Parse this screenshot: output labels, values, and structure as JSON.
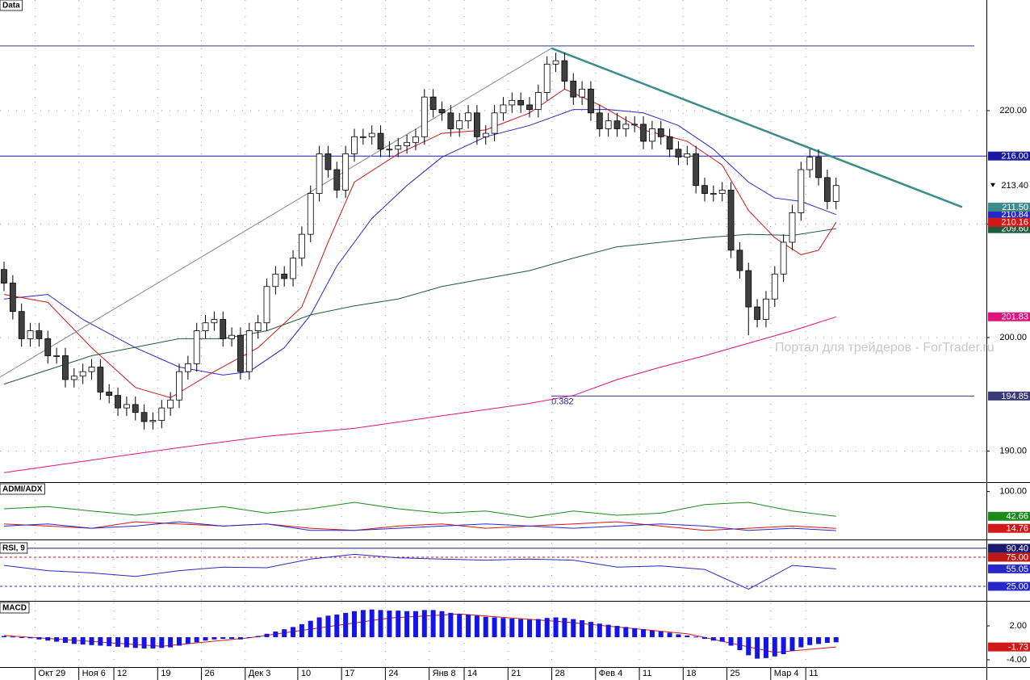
{
  "chart_data": [
    {
      "type": "candlestick",
      "title": "Data",
      "categories": [
        null,
        null,
        null,
        null,
        "Окт 29",
        null,
        null,
        null,
        null,
        "Ноя 6",
        null,
        null,
        null,
        "12",
        null,
        null,
        null,
        null,
        "19",
        null,
        null,
        null,
        null,
        "26",
        null,
        null,
        null,
        null,
        "Дек 3",
        null,
        null,
        null,
        null,
        null,
        "10",
        null,
        null,
        null,
        null,
        "17",
        null,
        null,
        null,
        null,
        "24",
        null,
        null,
        null,
        null,
        "Янв 8",
        null,
        null,
        null,
        "14",
        null,
        null,
        null,
        null,
        "21",
        null,
        null,
        null,
        null,
        "28",
        null,
        null,
        null,
        null,
        "Фев 4",
        null,
        null,
        null,
        null,
        "11",
        null,
        null,
        null,
        null,
        "18",
        null,
        null,
        null,
        null,
        "25",
        null,
        null,
        null,
        null,
        "Мар 4",
        null,
        null,
        null,
        "11",
        null,
        null,
        null
      ],
      "open": [
        206.0,
        204.8,
        202.3,
        199.9,
        200.6,
        199.9,
        198.4,
        198.4,
        196.3,
        196.6,
        197.0,
        197.4,
        195.2,
        194.9,
        193.8,
        194.1,
        193.4,
        192.6,
        192.7,
        193.8,
        194.5,
        197.0,
        197.7,
        200.6,
        201.3,
        201.6,
        199.9,
        200.2,
        197.0,
        200.6,
        201.3,
        204.5,
        205.6,
        205.2,
        207.0,
        209.1,
        212.7,
        216.2,
        214.8,
        213.0,
        216.2,
        217.7,
        217.7,
        218.0,
        216.6,
        216.6,
        216.9,
        217.2,
        217.7,
        221.2,
        220.1,
        219.8,
        218.4,
        219.1,
        219.8,
        217.7,
        218.0,
        219.8,
        220.5,
        220.9,
        220.5,
        220.1,
        221.6,
        224.1,
        224.4,
        222.6,
        221.2,
        221.9,
        219.8,
        218.4,
        219.1,
        218.4,
        218.8,
        218.8,
        217.3,
        218.4,
        217.7,
        216.6,
        215.9,
        216.2,
        213.4,
        212.7,
        212.7,
        213.0,
        207.7,
        205.9,
        202.7,
        201.6,
        203.4,
        205.6,
        208.4,
        211.0,
        214.8,
        215.9,
        214.1,
        212.0
      ],
      "high": [
        206.7,
        205.5,
        203.0,
        201.3,
        201.3,
        200.6,
        199.1,
        199.1,
        197.3,
        197.7,
        198.1,
        198.1,
        195.9,
        195.6,
        194.8,
        194.8,
        194.1,
        193.4,
        194.5,
        195.2,
        197.7,
        198.4,
        201.3,
        202.0,
        202.3,
        202.3,
        200.9,
        200.9,
        201.3,
        202.0,
        205.2,
        206.3,
        206.3,
        207.7,
        209.8,
        213.4,
        216.9,
        216.9,
        215.5,
        216.9,
        218.4,
        218.4,
        218.7,
        218.7,
        217.3,
        217.6,
        217.9,
        218.4,
        221.9,
        221.9,
        220.8,
        220.5,
        219.8,
        220.5,
        220.5,
        218.7,
        220.5,
        221.2,
        221.6,
        221.6,
        221.2,
        222.3,
        224.8,
        225.1,
        225.1,
        223.3,
        222.6,
        222.6,
        220.5,
        219.8,
        219.8,
        219.5,
        219.5,
        219.5,
        219.1,
        219.1,
        218.4,
        217.3,
        216.9,
        216.9,
        214.1,
        213.4,
        213.7,
        213.7,
        208.4,
        206.6,
        203.4,
        204.1,
        206.3,
        209.1,
        211.7,
        215.5,
        216.6,
        216.6,
        214.8,
        214.1
      ],
      "low": [
        204.1,
        201.6,
        199.2,
        199.2,
        199.2,
        197.7,
        197.7,
        195.6,
        195.6,
        195.9,
        196.3,
        194.5,
        194.2,
        193.1,
        193.1,
        192.7,
        191.9,
        191.9,
        192.0,
        193.1,
        193.8,
        196.3,
        197.0,
        199.9,
        200.6,
        199.2,
        199.2,
        196.3,
        196.3,
        199.9,
        200.6,
        203.8,
        204.5,
        204.5,
        206.3,
        208.4,
        212.0,
        214.1,
        212.3,
        212.3,
        215.5,
        217.0,
        217.0,
        215.9,
        215.9,
        215.9,
        216.2,
        216.5,
        217.0,
        219.4,
        219.1,
        217.7,
        217.7,
        218.4,
        217.0,
        217.0,
        217.3,
        219.1,
        219.8,
        219.8,
        219.4,
        219.4,
        220.9,
        223.4,
        221.9,
        220.5,
        220.5,
        219.1,
        217.7,
        217.7,
        217.7,
        217.7,
        218.1,
        216.6,
        216.6,
        217.0,
        215.9,
        215.2,
        215.2,
        212.7,
        212.0,
        212.0,
        212.0,
        207.0,
        205.2,
        200.2,
        200.9,
        200.9,
        202.7,
        204.9,
        207.7,
        210.3,
        214.1,
        213.4,
        211.3,
        211.3
      ],
      "close": [
        204.8,
        202.3,
        199.9,
        200.6,
        199.9,
        198.4,
        198.4,
        196.3,
        196.6,
        197.0,
        197.4,
        195.2,
        194.9,
        193.8,
        194.1,
        193.4,
        192.6,
        192.7,
        193.8,
        194.5,
        197.0,
        197.7,
        200.6,
        201.3,
        201.6,
        199.9,
        200.2,
        197.0,
        200.6,
        201.3,
        204.5,
        205.6,
        205.2,
        207.0,
        209.1,
        212.7,
        216.2,
        214.8,
        213.0,
        216.2,
        217.7,
        217.7,
        218.0,
        216.6,
        216.6,
        216.9,
        217.2,
        217.7,
        221.2,
        220.1,
        219.8,
        218.4,
        219.1,
        219.8,
        217.7,
        218.0,
        219.8,
        220.5,
        220.9,
        220.5,
        220.1,
        221.6,
        224.1,
        224.4,
        222.6,
        221.2,
        221.9,
        219.8,
        218.4,
        219.1,
        218.4,
        218.8,
        218.8,
        217.3,
        218.4,
        217.7,
        216.6,
        215.9,
        216.2,
        213.4,
        212.7,
        212.7,
        213.0,
        207.7,
        205.9,
        202.7,
        201.6,
        203.4,
        205.6,
        208.4,
        211.0,
        214.8,
        215.9,
        214.1,
        212.0,
        213.4
      ],
      "close_label": "213.40",
      "up_color": "#ffffff",
      "down_color": "#404040",
      "ylim": [
        187.26,
        229.75
      ],
      "yticks": [
        {
          "value": 190,
          "label": "190.00"
        },
        {
          "value": 200,
          "label": "200.00"
        },
        {
          "value": 210,
          "label": "210.00"
        },
        {
          "value": 220,
          "label": "220.00"
        }
      ],
      "grid": true,
      "series": [
        {
          "x": [
            0,
            10,
            20,
            30,
            40,
            50,
            60,
            65,
            70,
            75,
            80,
            85,
            90,
            95
          ],
          "values": [
            188.1,
            189.2,
            190.3,
            191.3,
            192.0,
            193.1,
            194.2,
            194.9,
            196.3,
            197.4,
            198.4,
            199.5,
            200.6,
            201.83
          ],
          "color": "#e0147a",
          "label": "201.83"
        },
        {
          "x": [
            0,
            10,
            20,
            25,
            30,
            35,
            40,
            45,
            50,
            55,
            60,
            65,
            70,
            75,
            80,
            85,
            90,
            95
          ],
          "values": [
            195.9,
            198.4,
            199.9,
            199.9,
            200.6,
            202.0,
            202.8,
            203.4,
            204.5,
            205.2,
            205.9,
            207.0,
            208.0,
            208.4,
            208.8,
            209.1,
            209.0,
            209.6
          ],
          "color": "#1e5a3c",
          "label": "209.60"
        },
        {
          "x": [
            0,
            5,
            9,
            15,
            20,
            25,
            28,
            32,
            35,
            38,
            42,
            46,
            50,
            55,
            60,
            65,
            69,
            73,
            77,
            81,
            85,
            88,
            91,
            95
          ],
          "values": [
            203.4,
            203.8,
            201.6,
            199.1,
            197.4,
            196.7,
            197.0,
            199.1,
            202.0,
            206.3,
            210.5,
            213.4,
            215.9,
            217.7,
            218.7,
            220.1,
            220.1,
            219.8,
            218.7,
            216.6,
            213.7,
            212.3,
            212.0,
            210.84
          ],
          "color": "#2828c8",
          "label": "210.84"
        },
        {
          "x": [
            0,
            5,
            10,
            15,
            19,
            24,
            29,
            34,
            37,
            40,
            45,
            50,
            55,
            60,
            64,
            68,
            73,
            78,
            82,
            85,
            88,
            91,
            93,
            95
          ],
          "values": [
            203.8,
            203.1,
            199.1,
            195.6,
            194.7,
            197.0,
            199.1,
            202.7,
            208.4,
            213.7,
            216.2,
            218.0,
            218.3,
            219.8,
            221.9,
            220.5,
            218.3,
            217.3,
            215.2,
            211.2,
            208.8,
            207.3,
            207.7,
            210.16
          ],
          "color": "#d01818",
          "label": "210.16"
        }
      ],
      "levels": [
        {
          "value": 225.7,
          "x": [
            -0.5,
            110.8
          ],
          "color": "#283c8c"
        },
        {
          "value": 216,
          "x": [
            -0.5,
            112.2
          ],
          "color": "#1a1aa0",
          "label": "216.00"
        },
        {
          "value": 194.85,
          "x": [
            62.5,
            110.8
          ],
          "color": "#3a3a78",
          "label": "194.85",
          "annotation": "0.382"
        }
      ],
      "trendlines": [
        {
          "x": [
            -0.5,
            62.5
          ],
          "values": [
            196.5,
            225.5
          ],
          "color": "#888888"
        },
        {
          "x": [
            62.5,
            109.4
          ],
          "values": [
            225.5,
            211.5
          ],
          "color": "#3c8c8c",
          "label": "211.50"
        }
      ],
      "watermark": "Портал для трейдеров - ForTrader.ru"
    },
    {
      "type": "line",
      "title": "ADMI/ADX",
      "ylim": [
        -11,
        118
      ],
      "yticks": [
        {
          "value": 100,
          "label": "100.00"
        }
      ],
      "series": [
        {
          "x": [
            0,
            5,
            10,
            15,
            20,
            25,
            30,
            35,
            40,
            45,
            50,
            55,
            60,
            65,
            70,
            75,
            80,
            85,
            90,
            95
          ],
          "values": [
            60,
            65,
            55,
            45,
            55,
            65,
            50,
            60,
            75,
            60,
            50,
            55,
            40,
            55,
            45,
            50,
            70,
            75,
            55,
            42.66
          ],
          "color": "#1a8a1a",
          "label": "42.66"
        },
        {
          "x": [
            0,
            5,
            10,
            15,
            20,
            25,
            30,
            35,
            40,
            45,
            50,
            55,
            60,
            65,
            70,
            75,
            80,
            85,
            90,
            95
          ],
          "values": [
            25,
            20,
            15,
            30,
            25,
            20,
            25,
            15,
            10,
            20,
            25,
            15,
            20,
            25,
            30,
            20,
            10,
            15,
            20,
            14.76
          ],
          "color": "#d01818",
          "label": "14.76"
        },
        {
          "x": [
            0,
            5,
            10,
            15,
            20,
            25,
            30,
            35,
            40,
            45,
            50,
            55,
            60,
            65,
            70,
            75,
            80,
            85,
            90,
            95
          ],
          "values": [
            20,
            25,
            15,
            20,
            30,
            20,
            25,
            10,
            10,
            15,
            20,
            25,
            20,
            15,
            20,
            25,
            20,
            10,
            15,
            9.5
          ],
          "color": "#2828c8"
        }
      ]
    },
    {
      "type": "line",
      "title": "RSI, 9",
      "ylim": [
        0,
        100
      ],
      "levels": [
        {
          "value": 90.4,
          "color": "#1a1a70",
          "label": "90.40"
        },
        {
          "value": 75,
          "color": "#c01818",
          "label": "75.00",
          "dashed": true
        },
        {
          "value": 25,
          "color": "#2828c8",
          "label": "25.00",
          "dashed": true
        }
      ],
      "series": [
        {
          "x": [
            0,
            5,
            10,
            15,
            20,
            25,
            30,
            35,
            40,
            45,
            50,
            55,
            60,
            65,
            70,
            75,
            80,
            85,
            90,
            95
          ],
          "values": [
            61,
            52,
            48,
            42,
            52,
            58,
            57,
            72,
            80,
            74,
            72,
            70,
            72,
            70,
            58,
            60,
            54,
            20,
            61,
            55.05
          ],
          "color": "#2828c8",
          "label": "55.05"
        }
      ]
    },
    {
      "type": "macd",
      "title": "MACD",
      "ylim": [
        -5.29,
        6.14
      ],
      "yticks": [
        {
          "value": 2,
          "label": "2.00"
        },
        {
          "value": -4,
          "label": "-4.00"
        }
      ],
      "histogram": {
        "color": "#1414e6",
        "values": [
          0.2,
          0.1,
          0,
          -0.2,
          -0.4,
          -0.6,
          -0.8,
          -1.0,
          -1.2,
          -1.3,
          -1.4,
          -1.5,
          -1.6,
          -1.7,
          -1.8,
          -1.9,
          -2.0,
          -2.0,
          -1.9,
          -1.8,
          -1.5,
          -1.2,
          -0.9,
          -0.6,
          -0.4,
          -0.3,
          -0.3,
          -0.4,
          -0.1,
          0.2,
          0.6,
          1.0,
          1.4,
          1.8,
          2.3,
          2.9,
          3.5,
          3.8,
          4.0,
          4.3,
          4.6,
          4.8,
          4.9,
          4.8,
          4.7,
          4.7,
          4.6,
          4.6,
          4.8,
          4.8,
          4.6,
          4.3,
          4.1,
          4.0,
          3.8,
          3.6,
          3.5,
          3.4,
          3.3,
          3.2,
          3.1,
          3.2,
          3.4,
          3.5,
          3.4,
          3.2,
          3.0,
          2.7,
          2.4,
          2.2,
          2.0,
          1.8,
          1.6,
          1.4,
          1.2,
          1.0,
          0.8,
          0.5,
          0.3,
          0.1,
          -0.3,
          -0.6,
          -0.8,
          -1.5,
          -2.3,
          -3.2,
          -3.8,
          -3.7,
          -3.4,
          -3.0,
          -2.4,
          -1.8,
          -1.4,
          -1.2,
          -1.0,
          -0.9
        ]
      },
      "series": [
        {
          "x": [
            0,
            18,
            28,
            44,
            52,
            64,
            78,
            88,
            95
          ],
          "values": [
            0.3,
            -1.6,
            -0.1,
            3.4,
            4.1,
            2.7,
            0.6,
            -2.7,
            -1.73
          ],
          "color": "#d01818",
          "label": "-1.73"
        }
      ]
    }
  ]
}
